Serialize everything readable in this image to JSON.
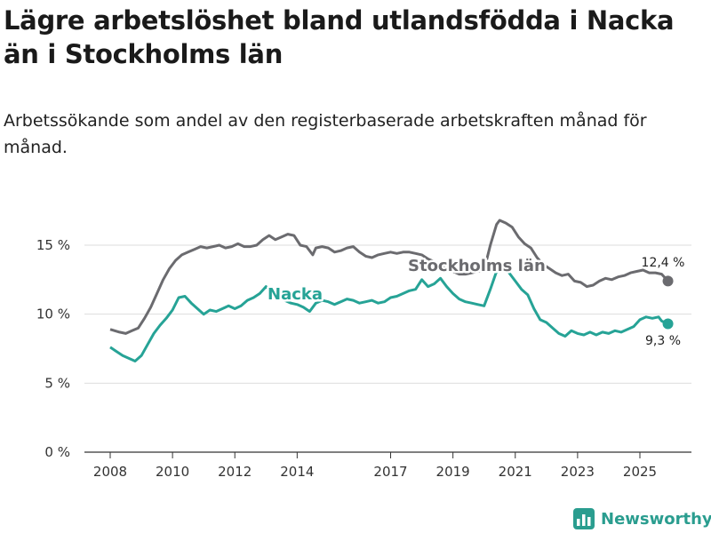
{
  "title": "Lägre arbetslöshet bland utlandsfödda i Nacka än i Stockholms län",
  "subtitle": "Arbetssökande som andel av den registerbaserade arbetskraften månad för månad.",
  "brand": "Newsworthy",
  "colors": {
    "nacka": "#26a396",
    "stockholm": "#6b6b6f",
    "grid": "#dddddd",
    "brand": "#2a9d8f"
  },
  "chart_data": {
    "type": "line",
    "title": "Lägre arbetslöshet bland utlandsfödda i Nacka än i Stockholms län",
    "xlabel": "",
    "ylabel": "",
    "x_range": [
      2008.0,
      2026.0
    ],
    "ylim": [
      0,
      17
    ],
    "y_ticks": [
      0,
      5,
      10,
      15
    ],
    "y_tick_labels": [
      "0 %",
      "5 %",
      "10 %",
      "15 %"
    ],
    "x_ticks": [
      2008,
      2010,
      2012,
      2014,
      2017,
      2019,
      2021,
      2023,
      2025
    ],
    "x_tick_labels": [
      "2008",
      "2010",
      "2012",
      "2014",
      "2017",
      "2019",
      "2021",
      "2023",
      "2025"
    ],
    "grid": true,
    "series": [
      {
        "name": "Stockholms län",
        "label": "Stockholms län",
        "end_label": "12,4 %",
        "points": [
          [
            2008.0,
            8.9
          ],
          [
            2008.3,
            8.7
          ],
          [
            2008.5,
            8.6
          ],
          [
            2008.7,
            8.8
          ],
          [
            2008.9,
            9.0
          ],
          [
            2009.1,
            9.7
          ],
          [
            2009.3,
            10.5
          ],
          [
            2009.5,
            11.5
          ],
          [
            2009.7,
            12.5
          ],
          [
            2009.9,
            13.3
          ],
          [
            2010.1,
            13.9
          ],
          [
            2010.3,
            14.3
          ],
          [
            2010.5,
            14.5
          ],
          [
            2010.7,
            14.7
          ],
          [
            2010.9,
            14.9
          ],
          [
            2011.1,
            14.8
          ],
          [
            2011.3,
            14.9
          ],
          [
            2011.5,
            15.0
          ],
          [
            2011.7,
            14.8
          ],
          [
            2011.9,
            14.9
          ],
          [
            2012.1,
            15.1
          ],
          [
            2012.3,
            14.9
          ],
          [
            2012.5,
            14.9
          ],
          [
            2012.7,
            15.0
          ],
          [
            2012.9,
            15.4
          ],
          [
            2013.1,
            15.7
          ],
          [
            2013.3,
            15.4
          ],
          [
            2013.5,
            15.6
          ],
          [
            2013.7,
            15.8
          ],
          [
            2013.9,
            15.7
          ],
          [
            2014.1,
            15.0
          ],
          [
            2014.3,
            14.9
          ],
          [
            2014.5,
            14.3
          ],
          [
            2014.6,
            14.8
          ],
          [
            2014.8,
            14.9
          ],
          [
            2015.0,
            14.8
          ],
          [
            2015.2,
            14.5
          ],
          [
            2015.4,
            14.6
          ],
          [
            2015.6,
            14.8
          ],
          [
            2015.8,
            14.9
          ],
          [
            2016.0,
            14.5
          ],
          [
            2016.2,
            14.2
          ],
          [
            2016.4,
            14.1
          ],
          [
            2016.6,
            14.3
          ],
          [
            2016.8,
            14.4
          ],
          [
            2017.0,
            14.5
          ],
          [
            2017.2,
            14.4
          ],
          [
            2017.4,
            14.5
          ],
          [
            2017.6,
            14.5
          ],
          [
            2017.8,
            14.4
          ],
          [
            2018.0,
            14.3
          ],
          [
            2018.2,
            14.0
          ],
          [
            2018.4,
            13.8
          ],
          [
            2018.6,
            13.6
          ],
          [
            2018.8,
            13.4
          ],
          [
            2019.0,
            13.1
          ],
          [
            2019.2,
            12.9
          ],
          [
            2019.4,
            12.9
          ],
          [
            2019.6,
            13.0
          ],
          [
            2019.8,
            13.1
          ],
          [
            2020.0,
            13.2
          ],
          [
            2020.2,
            15.0
          ],
          [
            2020.4,
            16.5
          ],
          [
            2020.5,
            16.8
          ],
          [
            2020.7,
            16.6
          ],
          [
            2020.9,
            16.3
          ],
          [
            2021.1,
            15.6
          ],
          [
            2021.3,
            15.1
          ],
          [
            2021.5,
            14.8
          ],
          [
            2021.7,
            14.1
          ],
          [
            2021.9,
            13.6
          ],
          [
            2022.1,
            13.3
          ],
          [
            2022.3,
            13.0
          ],
          [
            2022.5,
            12.8
          ],
          [
            2022.7,
            12.9
          ],
          [
            2022.9,
            12.4
          ],
          [
            2023.1,
            12.3
          ],
          [
            2023.3,
            12.0
          ],
          [
            2023.5,
            12.1
          ],
          [
            2023.7,
            12.4
          ],
          [
            2023.9,
            12.6
          ],
          [
            2024.1,
            12.5
          ],
          [
            2024.3,
            12.7
          ],
          [
            2024.5,
            12.8
          ],
          [
            2024.7,
            13.0
          ],
          [
            2024.9,
            13.1
          ],
          [
            2025.1,
            13.2
          ],
          [
            2025.3,
            13.0
          ],
          [
            2025.5,
            13.0
          ],
          [
            2025.7,
            12.9
          ],
          [
            2025.9,
            12.4
          ]
        ]
      },
      {
        "name": "Nacka",
        "label": "Nacka",
        "end_label": "9,3 %",
        "points": [
          [
            2008.0,
            7.6
          ],
          [
            2008.2,
            7.3
          ],
          [
            2008.4,
            7.0
          ],
          [
            2008.6,
            6.8
          ],
          [
            2008.8,
            6.6
          ],
          [
            2009.0,
            7.0
          ],
          [
            2009.2,
            7.8
          ],
          [
            2009.4,
            8.6
          ],
          [
            2009.6,
            9.2
          ],
          [
            2009.8,
            9.7
          ],
          [
            2010.0,
            10.3
          ],
          [
            2010.2,
            11.2
          ],
          [
            2010.4,
            11.3
          ],
          [
            2010.6,
            10.8
          ],
          [
            2010.8,
            10.4
          ],
          [
            2011.0,
            10.0
          ],
          [
            2011.2,
            10.3
          ],
          [
            2011.4,
            10.2
          ],
          [
            2011.6,
            10.4
          ],
          [
            2011.8,
            10.6
          ],
          [
            2012.0,
            10.4
          ],
          [
            2012.2,
            10.6
          ],
          [
            2012.4,
            11.0
          ],
          [
            2012.6,
            11.2
          ],
          [
            2012.8,
            11.5
          ],
          [
            2013.0,
            12.0
          ],
          [
            2013.2,
            11.6
          ],
          [
            2013.4,
            11.3
          ],
          [
            2013.6,
            11.0
          ],
          [
            2013.8,
            10.8
          ],
          [
            2014.0,
            10.7
          ],
          [
            2014.2,
            10.5
          ],
          [
            2014.4,
            10.2
          ],
          [
            2014.6,
            10.8
          ],
          [
            2014.8,
            11.0
          ],
          [
            2015.0,
            10.9
          ],
          [
            2015.2,
            10.7
          ],
          [
            2015.4,
            10.9
          ],
          [
            2015.6,
            11.1
          ],
          [
            2015.8,
            11.0
          ],
          [
            2016.0,
            10.8
          ],
          [
            2016.2,
            10.9
          ],
          [
            2016.4,
            11.0
          ],
          [
            2016.6,
            10.8
          ],
          [
            2016.8,
            10.9
          ],
          [
            2017.0,
            11.2
          ],
          [
            2017.2,
            11.3
          ],
          [
            2017.4,
            11.5
          ],
          [
            2017.6,
            11.7
          ],
          [
            2017.8,
            11.8
          ],
          [
            2018.0,
            12.5
          ],
          [
            2018.2,
            12.0
          ],
          [
            2018.4,
            12.2
          ],
          [
            2018.6,
            12.6
          ],
          [
            2018.8,
            12.0
          ],
          [
            2019.0,
            11.5
          ],
          [
            2019.2,
            11.1
          ],
          [
            2019.4,
            10.9
          ],
          [
            2019.6,
            10.8
          ],
          [
            2019.8,
            10.7
          ],
          [
            2020.0,
            10.6
          ],
          [
            2020.2,
            11.8
          ],
          [
            2020.4,
            13.1
          ],
          [
            2020.6,
            13.4
          ],
          [
            2020.8,
            13.0
          ],
          [
            2021.0,
            12.4
          ],
          [
            2021.2,
            11.8
          ],
          [
            2021.4,
            11.4
          ],
          [
            2021.6,
            10.4
          ],
          [
            2021.8,
            9.6
          ],
          [
            2022.0,
            9.4
          ],
          [
            2022.2,
            9.0
          ],
          [
            2022.4,
            8.6
          ],
          [
            2022.6,
            8.4
          ],
          [
            2022.8,
            8.8
          ],
          [
            2023.0,
            8.6
          ],
          [
            2023.2,
            8.5
          ],
          [
            2023.4,
            8.7
          ],
          [
            2023.6,
            8.5
          ],
          [
            2023.8,
            8.7
          ],
          [
            2024.0,
            8.6
          ],
          [
            2024.2,
            8.8
          ],
          [
            2024.4,
            8.7
          ],
          [
            2024.6,
            8.9
          ],
          [
            2024.8,
            9.1
          ],
          [
            2025.0,
            9.6
          ],
          [
            2025.2,
            9.8
          ],
          [
            2025.4,
            9.7
          ],
          [
            2025.6,
            9.8
          ],
          [
            2025.7,
            9.5
          ],
          [
            2025.9,
            9.3
          ]
        ]
      }
    ]
  }
}
